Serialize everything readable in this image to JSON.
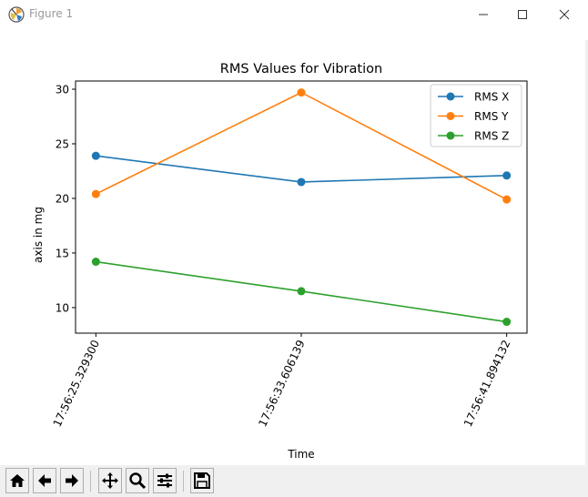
{
  "window": {
    "title": "Figure 1"
  },
  "chart_data": {
    "type": "line",
    "title": "RMS Values for Vibration",
    "xlabel": "Time",
    "ylabel": "axis in mg",
    "categories": [
      "17:56:25.329300",
      "17:56:33.606139",
      "17:56:41.894132"
    ],
    "series": [
      {
        "name": "RMS X",
        "color": "#1f77b4",
        "values": [
          23.9,
          21.5,
          22.1
        ]
      },
      {
        "name": "RMS Y",
        "color": "#ff7f0e",
        "values": [
          20.4,
          29.7,
          19.9
        ]
      },
      {
        "name": "RMS Z",
        "color": "#2ca02c",
        "values": [
          14.2,
          11.5,
          8.7
        ]
      }
    ],
    "ylim": [
      7.66,
      30.75
    ],
    "yticks": [
      10,
      15,
      20,
      25,
      30
    ],
    "legend_position": "top-right",
    "grid": false
  },
  "toolbar": {
    "buttons": [
      "home-icon",
      "back-icon",
      "forward-icon",
      "pan-icon",
      "zoom-icon",
      "configure-icon",
      "save-icon"
    ]
  }
}
